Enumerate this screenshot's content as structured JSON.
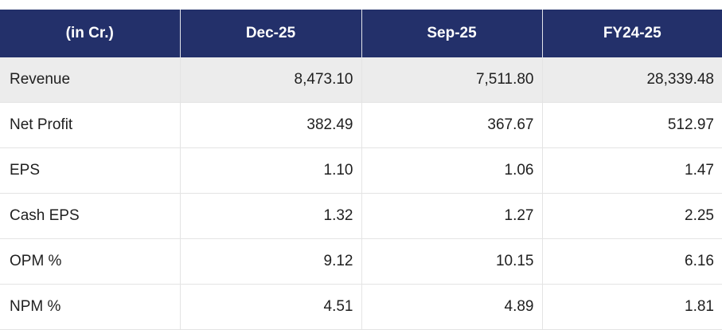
{
  "table": {
    "headers": [
      "(in Cr.)",
      "Dec-25",
      "Sep-25",
      "FY24-25"
    ],
    "rows": [
      {
        "label": "Revenue",
        "values": [
          "8,473.10",
          "7,511.80",
          "28,339.48"
        ]
      },
      {
        "label": "Net Profit",
        "values": [
          "382.49",
          "367.67",
          "512.97"
        ]
      },
      {
        "label": "EPS",
        "values": [
          "1.10",
          "1.06",
          "1.47"
        ]
      },
      {
        "label": "Cash EPS",
        "values": [
          "1.32",
          "1.27",
          "2.25"
        ]
      },
      {
        "label": "OPM %",
        "values": [
          "9.12",
          "10.15",
          "6.16"
        ]
      },
      {
        "label": "NPM %",
        "values": [
          "4.51",
          "4.89",
          "1.81"
        ]
      }
    ]
  },
  "colors": {
    "header_bg": "#23306a",
    "header_text": "#ffffff",
    "highlight_row_bg": "#ececec"
  }
}
